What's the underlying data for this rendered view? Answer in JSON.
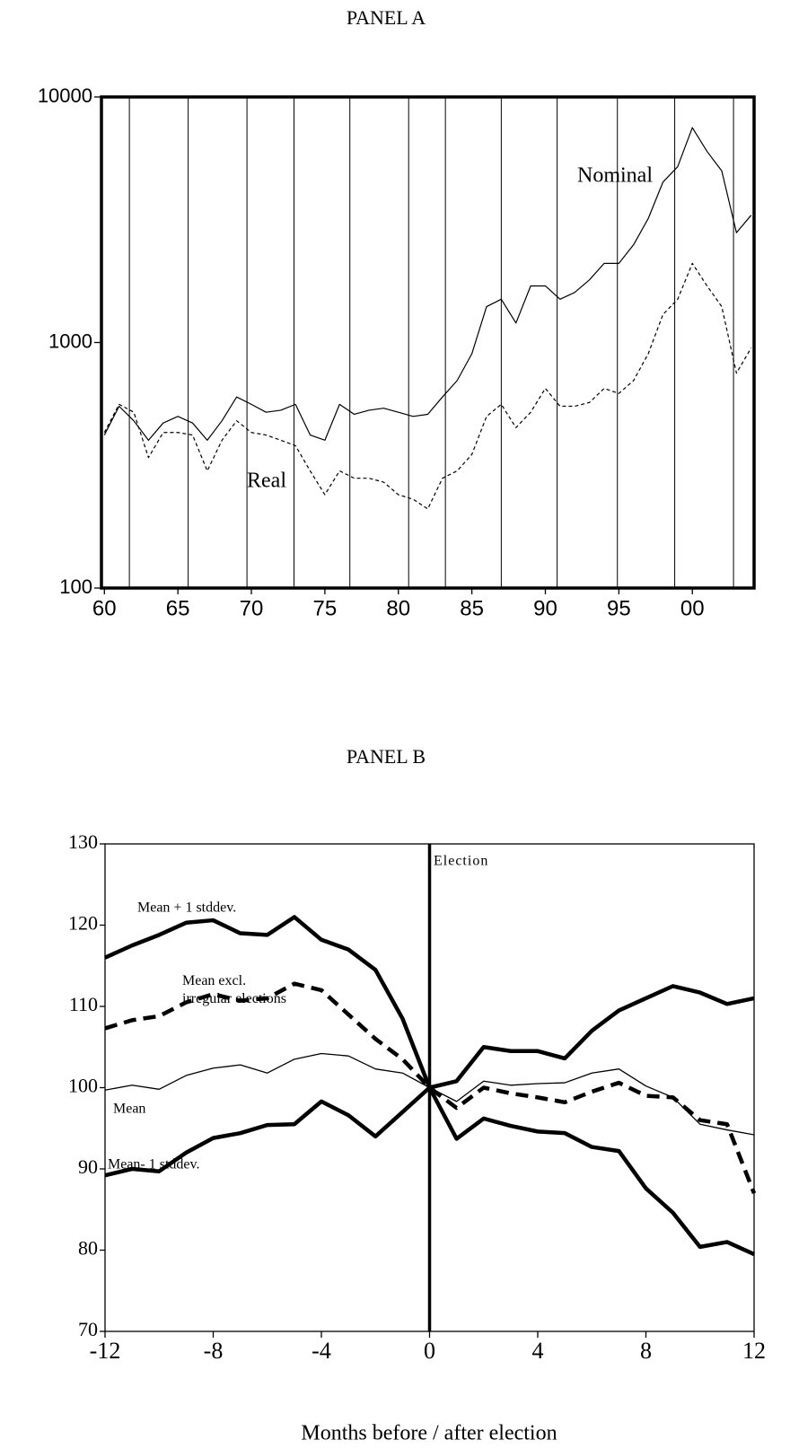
{
  "chart_data": [
    {
      "type": "line",
      "title": "PANEL A",
      "log_y": true,
      "x": [
        1960,
        1961,
        1962,
        1963,
        1964,
        1965,
        1966,
        1967,
        1968,
        1969,
        1970,
        1971,
        1972,
        1973,
        1974,
        1975,
        1976,
        1977,
        1978,
        1979,
        1980,
        1981,
        1982,
        1983,
        1984,
        1985,
        1986,
        1987,
        1988,
        1989,
        1990,
        1991,
        1992,
        1993,
        1994,
        1995,
        1996,
        1997,
        1998,
        1999,
        2000,
        2001,
        2002,
        2003,
        2004
      ],
      "series": [
        {
          "name": "Nominal",
          "color": "#000000",
          "style": "solid",
          "values": [
            420,
            550,
            480,
            400,
            470,
            500,
            470,
            400,
            480,
            600,
            560,
            520,
            530,
            560,
            420,
            400,
            560,
            510,
            530,
            540,
            520,
            500,
            510,
            600,
            700,
            900,
            1400,
            1500,
            1200,
            1700,
            1700,
            1500,
            1600,
            1800,
            2100,
            2100,
            2500,
            3200,
            4500,
            5200,
            7500,
            6000,
            5000,
            2800,
            3300
          ]
        },
        {
          "name": "Real",
          "color": "#000000",
          "style": "dashed",
          "values": [
            430,
            560,
            520,
            340,
            430,
            430,
            420,
            300,
            400,
            480,
            430,
            420,
            400,
            380,
            300,
            240,
            300,
            280,
            280,
            270,
            240,
            230,
            210,
            280,
            300,
            350,
            500,
            560,
            450,
            520,
            650,
            550,
            550,
            570,
            650,
            620,
            700,
            900,
            1300,
            1500,
            2100,
            1700,
            1400,
            750,
            950
          ]
        }
      ],
      "vlines": [
        1961.7,
        1965.7,
        1969.7,
        1972.9,
        1976.7,
        1980.7,
        1983.2,
        1987.0,
        1990.8,
        1994.9,
        1998.8,
        2002.8
      ],
      "xlim": [
        1959.8,
        2004.2
      ],
      "xticks": [
        {
          "value": 1960,
          "label": "60"
        },
        {
          "value": 1965,
          "label": "65"
        },
        {
          "value": 1970,
          "label": "70"
        },
        {
          "value": 1975,
          "label": "75"
        },
        {
          "value": 1980,
          "label": "80"
        },
        {
          "value": 1985,
          "label": "85"
        },
        {
          "value": 1990,
          "label": "90"
        },
        {
          "value": 1995,
          "label": "95"
        },
        {
          "value": 2000,
          "label": "00"
        }
      ],
      "ylim": [
        100,
        10000
      ],
      "yticks": [
        100,
        1000,
        10000
      ]
    },
    {
      "type": "line",
      "title": "PANEL B",
      "x_label": "Months before / after election",
      "annotation": "Election",
      "x": [
        -12,
        -11,
        -10,
        -9,
        -8,
        -7,
        -6,
        -5,
        -4,
        -3,
        -2,
        -1,
        0,
        1,
        2,
        3,
        4,
        5,
        6,
        7,
        8,
        9,
        10,
        11,
        12
      ],
      "series": [
        {
          "name": "Mean + 1 stddev.",
          "color": "#000000",
          "style": "solid",
          "line_width": 4.5,
          "values": [
            116,
            117.5,
            118.8,
            120.3,
            120.6,
            119,
            118.8,
            121,
            118.2,
            117,
            114.5,
            108.5,
            100,
            100.8,
            105,
            104.5,
            104.5,
            103.6,
            107,
            109.5,
            111,
            112.5,
            111.7,
            110.3,
            111
          ]
        },
        {
          "name": "Mean excl. irregular elections",
          "color": "#000000",
          "style": "dashed",
          "line_width": 4.5,
          "values": [
            107.3,
            108.3,
            108.8,
            110.5,
            111.5,
            110.7,
            111,
            112.8,
            112,
            109,
            106,
            103.5,
            100,
            97.5,
            100,
            99.3,
            98.8,
            98.2,
            99.5,
            100.6,
            99,
            98.8,
            96,
            95.5,
            87
          ]
        },
        {
          "name": "Mean",
          "color": "#000000",
          "style": "solid",
          "line_width": 1.3,
          "values": [
            99.7,
            100.3,
            99.8,
            101.5,
            102.4,
            102.8,
            101.8,
            103.5,
            104.2,
            103.9,
            102.3,
            101.8,
            100,
            98.3,
            100.8,
            100.3,
            100.5,
            100.6,
            101.8,
            102.3,
            100.2,
            98.8,
            95.5,
            94.8,
            94.2
          ]
        },
        {
          "name": "Mean- 1 stddev.",
          "color": "#000000",
          "style": "solid",
          "line_width": 4.5,
          "values": [
            89.2,
            90,
            89.7,
            92,
            93.8,
            94.4,
            95.4,
            95.5,
            98.3,
            96.6,
            94,
            97,
            100,
            93.7,
            96.2,
            95.3,
            94.6,
            94.4,
            92.7,
            92.2,
            87.6,
            84.6,
            80.4,
            81,
            79.5
          ]
        }
      ],
      "vlines": [
        0
      ],
      "xlim": [
        -12,
        12
      ],
      "xticks": [
        -12,
        -8,
        -4,
        0,
        4,
        8,
        12
      ],
      "ylim": [
        70,
        130
      ],
      "yticks": [
        70,
        80,
        90,
        100,
        110,
        120,
        130
      ]
    }
  ]
}
